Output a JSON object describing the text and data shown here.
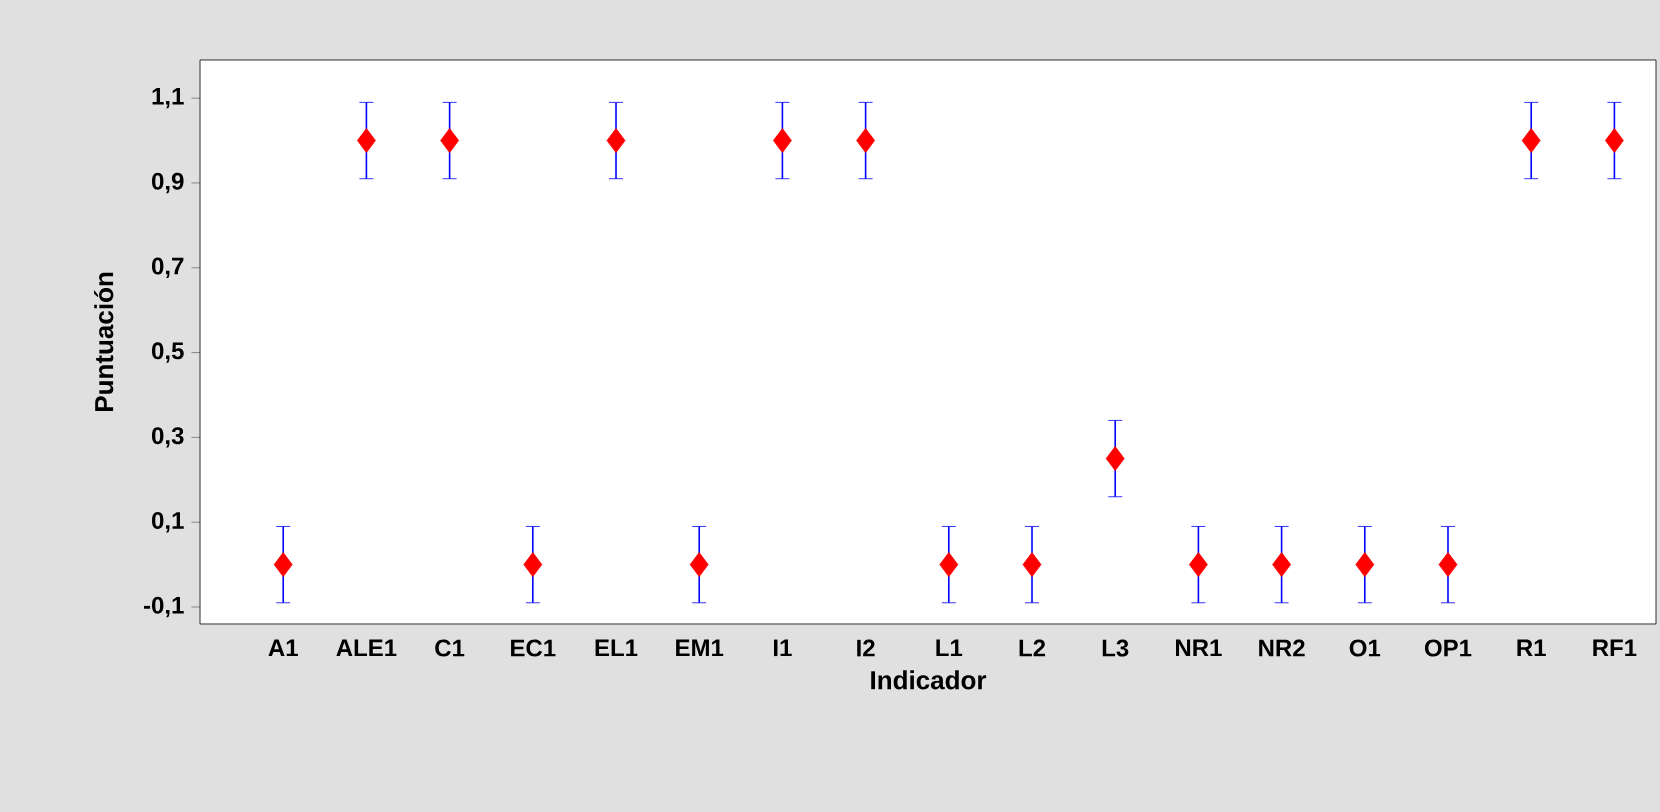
{
  "chart_data": {
    "type": "scatter",
    "xlabel": "Indicador",
    "ylabel": "Puntuación",
    "categories": [
      "A1",
      "ALE1",
      "C1",
      "EC1",
      "EL1",
      "EM1",
      "I1",
      "I2",
      "L1",
      "L2",
      "L3",
      "NR1",
      "NR2",
      "O1",
      "OP1",
      "R1",
      "RF1"
    ],
    "values": [
      0,
      1,
      1,
      0,
      1,
      0,
      1,
      1,
      0,
      0,
      0.25,
      0,
      0,
      0,
      0,
      1,
      1
    ],
    "errors": [
      0.09,
      0.09,
      0.09,
      0.09,
      0.09,
      0.09,
      0.09,
      0.09,
      0.09,
      0.09,
      0.09,
      0.09,
      0.09,
      0.09,
      0.09,
      0.09,
      0.09
    ],
    "color": "#ff0000",
    "marker": "diamond",
    "grid": false,
    "ylim": [
      -0.14,
      1.19
    ],
    "yticks": [
      {
        "value": -0.1,
        "label": "-0,1"
      },
      {
        "value": 0.1,
        "label": "0,1"
      },
      {
        "value": 0.3,
        "label": "0,3"
      },
      {
        "value": 0.5,
        "label": "0,5"
      },
      {
        "value": 0.7,
        "label": "0,7"
      },
      {
        "value": 0.9,
        "label": "0,9"
      },
      {
        "value": 1.1,
        "label": "1,1"
      }
    ]
  }
}
